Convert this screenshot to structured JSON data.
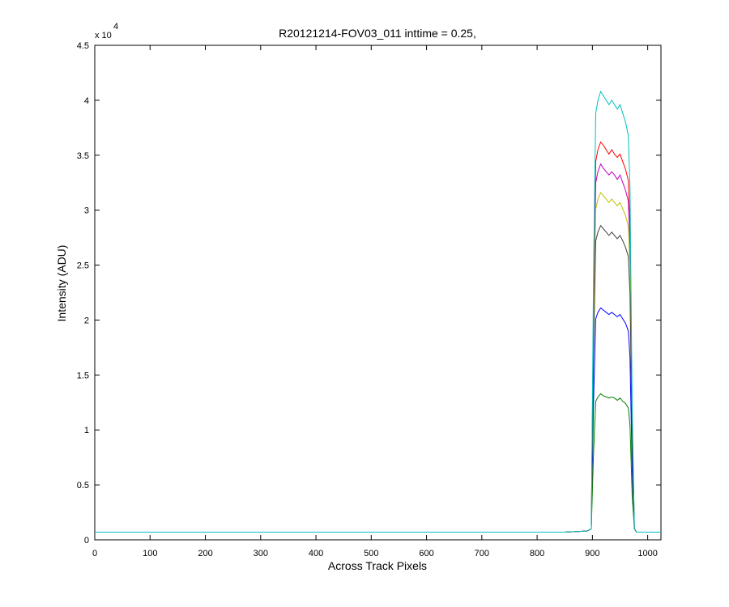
{
  "chart_data": {
    "type": "line",
    "title": "R20121214-FOV03_011 inttime = 0.25,",
    "x_label": "Across Track Pixels",
    "y_label": "Intensity (ADU)",
    "y_multiplier": {
      "base": "x 10",
      "exponent": "4"
    },
    "xlim": [
      0,
      1024
    ],
    "xticks": [
      0,
      100,
      200,
      300,
      400,
      500,
      600,
      700,
      800,
      900,
      1000
    ],
    "ylim": [
      0,
      4.5
    ],
    "yticks": [
      0,
      0.5,
      1,
      1.5,
      2,
      2.5,
      3,
      3.5,
      4,
      4.5
    ],
    "grid": false,
    "x": [
      0,
      100,
      200,
      300,
      400,
      500,
      600,
      700,
      800,
      850,
      890,
      898,
      902,
      906,
      910,
      915,
      920,
      925,
      930,
      935,
      940,
      945,
      950,
      955,
      960,
      965,
      968,
      972,
      976,
      980,
      1000,
      1024
    ],
    "series": [
      {
        "color": "#0000ff",
        "values": [
          0.07,
          0.07,
          0.07,
          0.07,
          0.07,
          0.07,
          0.07,
          0.07,
          0.07,
          0.07,
          0.08,
          0.1,
          1.24,
          2.01,
          2.07,
          2.11,
          2.09,
          2.07,
          2.05,
          2.07,
          2.05,
          2.03,
          2.05,
          2.01,
          1.97,
          1.9,
          1.66,
          0.62,
          0.1,
          0.07,
          0.07,
          0.07
        ]
      },
      {
        "color": "#008000",
        "values": [
          0.07,
          0.07,
          0.07,
          0.07,
          0.07,
          0.07,
          0.07,
          0.07,
          0.07,
          0.07,
          0.08,
          0.1,
          0.78,
          1.26,
          1.3,
          1.33,
          1.31,
          1.3,
          1.29,
          1.3,
          1.29,
          1.27,
          1.29,
          1.26,
          1.24,
          1.2,
          1.04,
          0.39,
          0.1,
          0.07,
          0.07,
          0.07
        ]
      },
      {
        "color": "#ff0000",
        "values": [
          0.07,
          0.07,
          0.07,
          0.07,
          0.07,
          0.07,
          0.07,
          0.07,
          0.07,
          0.07,
          0.08,
          0.1,
          2.13,
          3.44,
          3.55,
          3.62,
          3.59,
          3.55,
          3.51,
          3.55,
          3.51,
          3.48,
          3.51,
          3.44,
          3.37,
          3.27,
          2.84,
          1.07,
          0.1,
          0.07,
          0.07,
          0.07
        ]
      },
      {
        "color": "#bf00bf",
        "values": [
          0.07,
          0.07,
          0.07,
          0.07,
          0.07,
          0.07,
          0.07,
          0.07,
          0.07,
          0.07,
          0.08,
          0.1,
          2.01,
          3.25,
          3.35,
          3.42,
          3.38,
          3.35,
          3.32,
          3.35,
          3.32,
          3.28,
          3.32,
          3.25,
          3.18,
          3.08,
          2.68,
          1.0,
          0.1,
          0.07,
          0.07,
          0.07
        ]
      },
      {
        "color": "#bfbf00",
        "values": [
          0.07,
          0.07,
          0.07,
          0.07,
          0.07,
          0.07,
          0.07,
          0.07,
          0.07,
          0.07,
          0.08,
          0.1,
          1.86,
          3.01,
          3.1,
          3.16,
          3.13,
          3.1,
          3.07,
          3.1,
          3.07,
          3.04,
          3.07,
          3.01,
          2.95,
          2.85,
          2.48,
          0.93,
          0.1,
          0.07,
          0.07,
          0.07
        ]
      },
      {
        "color": "#404040",
        "values": [
          0.07,
          0.07,
          0.07,
          0.07,
          0.07,
          0.07,
          0.07,
          0.07,
          0.07,
          0.07,
          0.08,
          0.1,
          1.68,
          2.72,
          2.8,
          2.86,
          2.83,
          2.8,
          2.77,
          2.8,
          2.77,
          2.74,
          2.77,
          2.72,
          2.66,
          2.58,
          2.24,
          0.84,
          0.1,
          0.07,
          0.07,
          0.07
        ]
      },
      {
        "color": "#00bfbf",
        "values": [
          0.07,
          0.07,
          0.07,
          0.07,
          0.07,
          0.07,
          0.07,
          0.07,
          0.07,
          0.07,
          0.08,
          0.1,
          2.4,
          3.88,
          4.0,
          4.08,
          4.04,
          4.0,
          3.96,
          4.0,
          3.96,
          3.92,
          3.96,
          3.88,
          3.8,
          3.68,
          3.2,
          1.2,
          0.1,
          0.07,
          0.07,
          0.07
        ]
      }
    ]
  }
}
